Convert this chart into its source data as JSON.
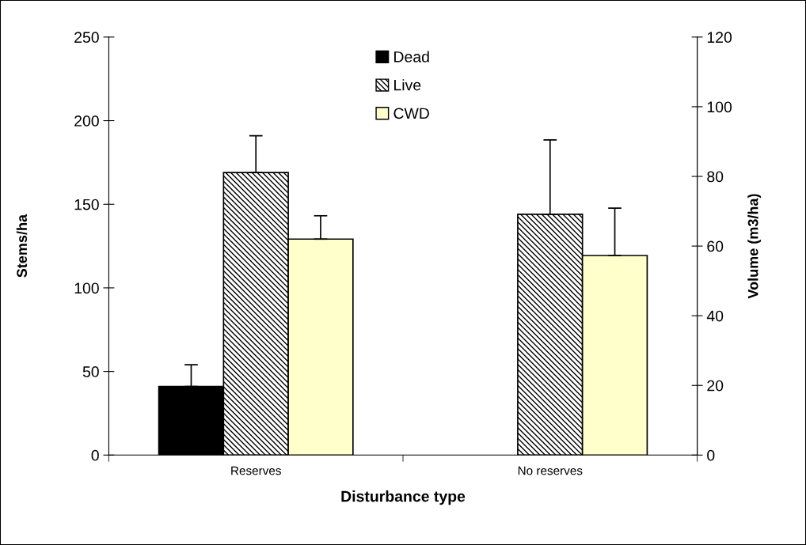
{
  "chart_data": {
    "type": "bar",
    "xlabel": "Disturbance type",
    "ylabel": "Stems/ha",
    "y2label": "Volume (m3/ha)",
    "categories": [
      "Reserves",
      "No reserves"
    ],
    "series": [
      {
        "name": "Dead",
        "color": "#000000",
        "values": [
          41,
          null
        ],
        "errors": [
          [
            41,
            54
          ],
          null
        ]
      },
      {
        "name": "Live",
        "color": "#000000",
        "values": [
          169,
          144
        ],
        "errors": [
          [
            169,
            191
          ],
          [
            144,
            188.5
          ]
        ]
      },
      {
        "name": "CWD",
        "color": "#ffffcc",
        "axis": "y2",
        "values": [
          62,
          57.3
        ],
        "errors": [
          [
            62,
            68.7
          ],
          [
            57.3,
            70.9
          ]
        ]
      }
    ],
    "ylim": [
      0,
      250
    ],
    "yticks": [
      0,
      50,
      100,
      150,
      200,
      250
    ],
    "y2lim": [
      0,
      120
    ],
    "y2ticks": [
      0,
      20,
      40,
      60,
      80,
      100,
      120
    ],
    "grid": false,
    "legend": "top"
  }
}
